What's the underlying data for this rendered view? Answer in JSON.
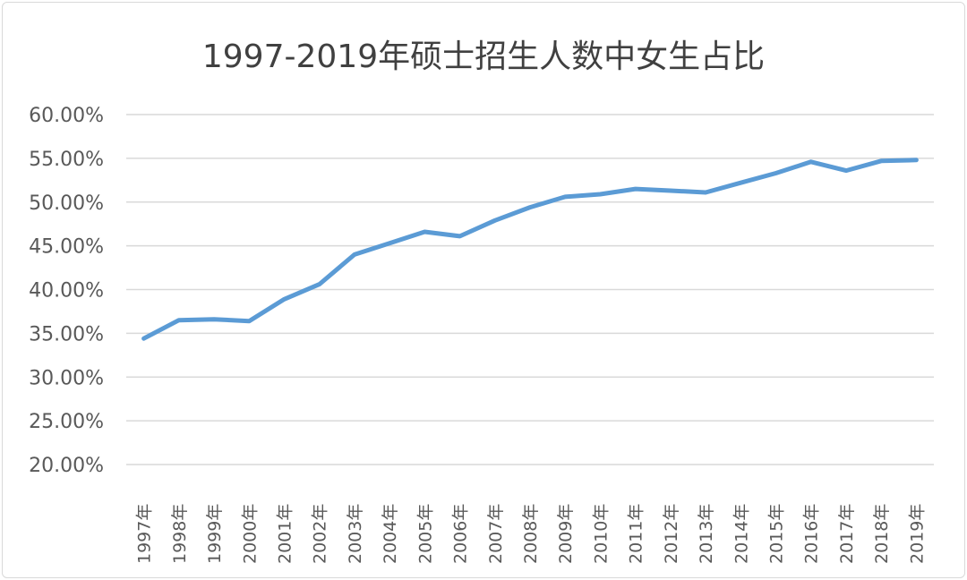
{
  "chart_data": {
    "type": "line",
    "title": "1997-2019年硕士招生人数中女生占比",
    "xlabel": "",
    "ylabel": "",
    "categories": [
      "1997年",
      "1998年",
      "1999年",
      "2000年",
      "2001年",
      "2002年",
      "2003年",
      "2004年",
      "2005年",
      "2006年",
      "2007年",
      "2008年",
      "2009年",
      "2010年",
      "2011年",
      "2012年",
      "2013年",
      "2014年",
      "2015年",
      "2016年",
      "2017年",
      "2018年",
      "2019年"
    ],
    "series": [
      {
        "name": "女生占比",
        "color": "#5b9bd5",
        "values": [
          34.4,
          36.5,
          36.6,
          36.4,
          38.9,
          40.6,
          44.0,
          45.3,
          46.6,
          46.1,
          47.9,
          49.4,
          50.6,
          50.9,
          51.5,
          51.3,
          51.1,
          52.2,
          53.3,
          54.6,
          53.6,
          54.7,
          54.8
        ]
      }
    ],
    "ylim": [
      20,
      60
    ],
    "yticks": [
      "20.00%",
      "25.00%",
      "30.00%",
      "35.00%",
      "40.00%",
      "45.00%",
      "50.00%",
      "55.00%",
      "60.00%"
    ],
    "grid": true,
    "legend": "none"
  }
}
